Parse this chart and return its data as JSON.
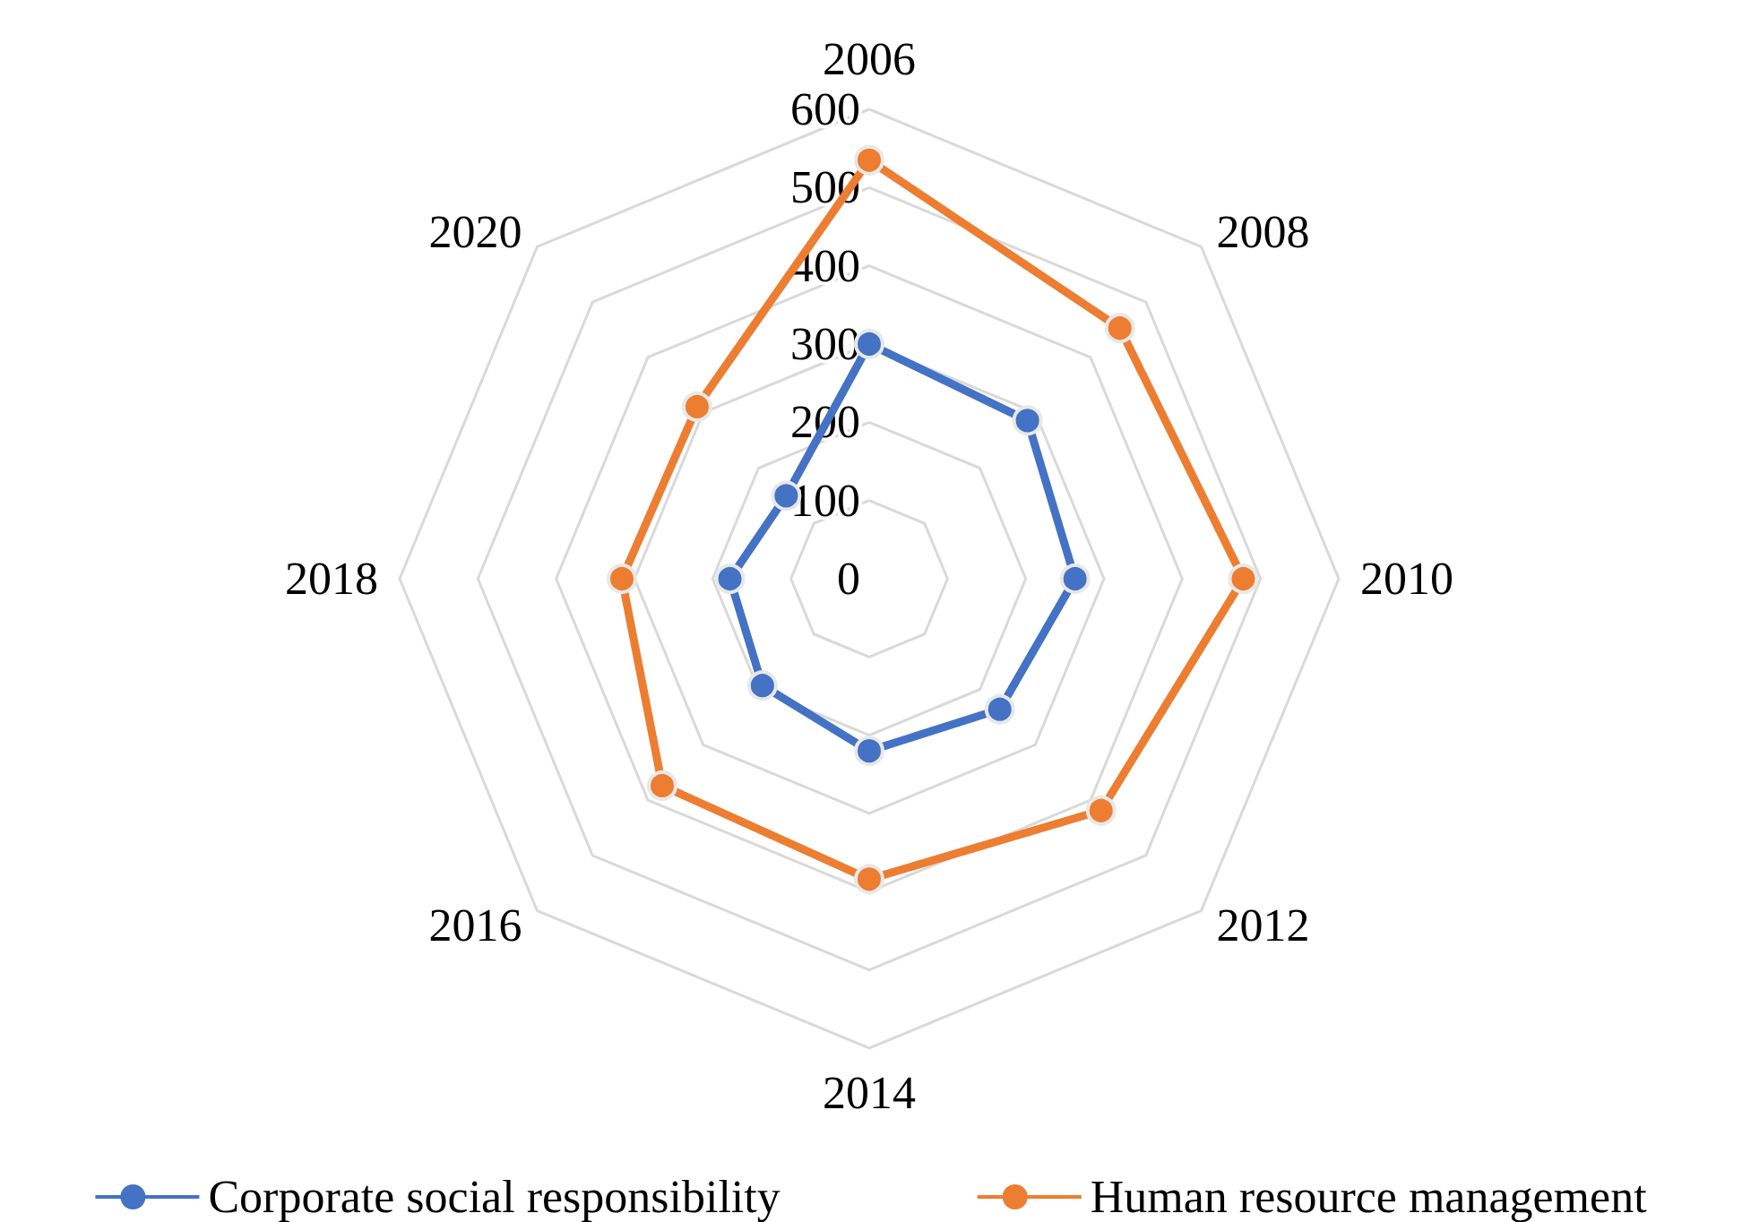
{
  "chart_data": {
    "type": "radar",
    "categories": [
      "2006",
      "2008",
      "2010",
      "2012",
      "2014",
      "2016",
      "2018",
      "2020"
    ],
    "series": [
      {
        "name": "Corporate social responsibility",
        "color": "#4472c4",
        "values": [
          300,
          286,
          263,
          236,
          220,
          193,
          178,
          150
        ]
      },
      {
        "name": "Human resource management",
        "color": "#ed7d31",
        "values": [
          535,
          453,
          478,
          419,
          384,
          374,
          316,
          311
        ]
      }
    ],
    "ylim": [
      0,
      600
    ],
    "yticks": [
      0,
      100,
      200,
      300,
      400,
      500,
      600
    ],
    "grid": true,
    "legend": "bottom",
    "marker": "circle",
    "line_style": "solid"
  }
}
